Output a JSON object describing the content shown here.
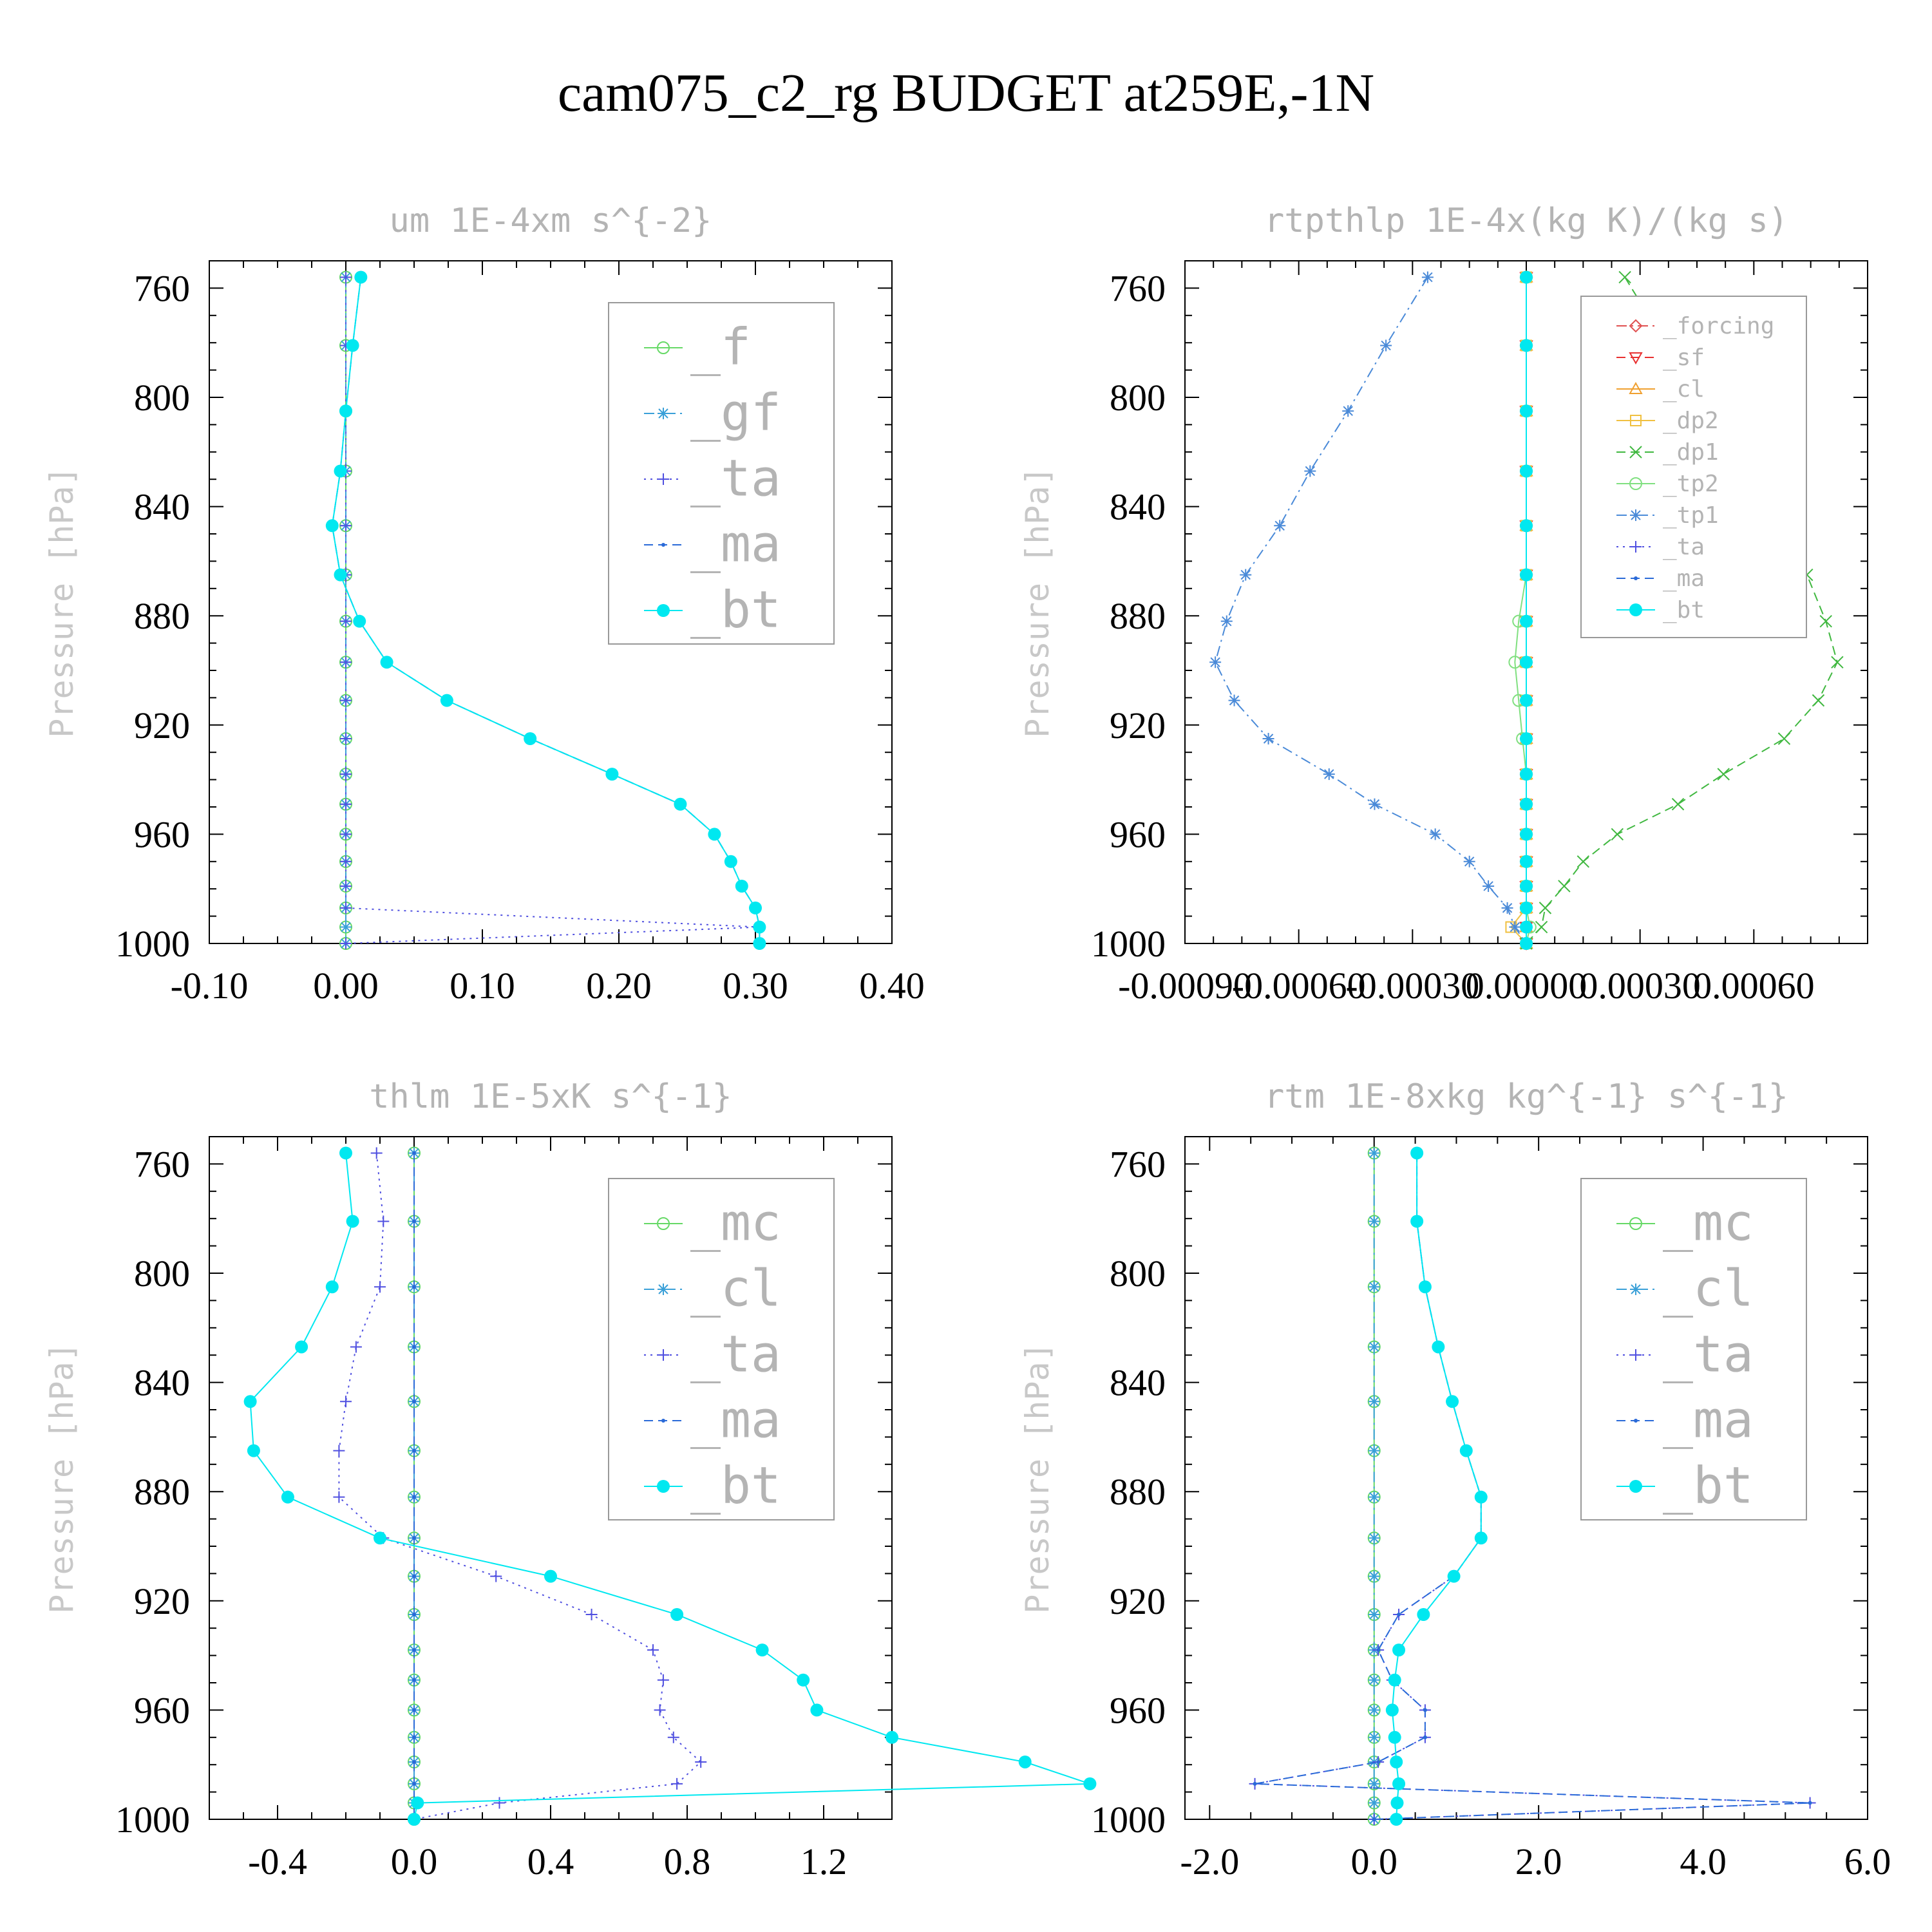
{
  "figure_title": "cam075_c2_rg  BUDGET at259E,-1N",
  "chart_data": [
    {
      "type": "line",
      "title": "um  1E-4xm s^{-2}",
      "ylabel": "Pressure [hPa]",
      "xlim": [
        -0.1,
        0.4
      ],
      "ylim": [
        1000,
        750
      ],
      "xticks": [
        "-0.10",
        "0.00",
        "0.10",
        "0.20",
        "0.30",
        "0.40"
      ],
      "xtick_values": [
        -0.1,
        0.0,
        0.1,
        0.2,
        0.3,
        0.4
      ],
      "yticks": [
        "760",
        "800",
        "840",
        "880",
        "920",
        "960",
        "1000"
      ],
      "legend_position": "top-right",
      "levels": [
        756,
        781,
        805,
        827,
        847,
        865,
        882,
        897,
        911,
        925,
        938,
        949,
        960,
        970,
        979,
        987,
        994,
        1000
      ],
      "series": [
        {
          "name": "_f",
          "color": "#66d966",
          "marker": "circle-open",
          "dash": "none",
          "values": [
            0,
            0,
            0,
            0,
            0,
            0,
            0,
            0,
            0,
            0,
            0,
            0,
            0,
            0,
            0,
            0,
            0,
            0
          ]
        },
        {
          "name": "_gf",
          "color": "#3aa0d8",
          "marker": "asterisk",
          "dash": "dashdot",
          "values": [
            0,
            0,
            0,
            0,
            0,
            0,
            0,
            0,
            0,
            0,
            0,
            0,
            0,
            0,
            0,
            0,
            0,
            0
          ]
        },
        {
          "name": "_ta",
          "color": "#5050e0",
          "marker": "plus",
          "dash": "dot",
          "values": [
            0,
            0,
            0,
            0,
            0,
            0,
            0,
            0,
            0,
            0,
            0,
            0,
            0,
            0,
            0,
            0,
            0.303,
            0.0
          ]
        },
        {
          "name": "_ma",
          "color": "#2a6ad8",
          "marker": "dot",
          "dash": "dash",
          "values": [
            0.011,
            0.005,
            0.0,
            -0.004,
            -0.01,
            -0.004,
            0.01,
            0.03,
            0.074,
            0.135,
            0.195,
            0.245,
            0.27,
            0.282,
            0.29,
            0.3,
            0.303,
            0.303
          ]
        },
        {
          "name": "_bt",
          "color": "#00e8f0",
          "marker": "filled-circle",
          "dash": "solid",
          "values": [
            0.011,
            0.005,
            0.0,
            -0.004,
            -0.01,
            -0.004,
            0.01,
            0.03,
            0.074,
            0.135,
            0.195,
            0.245,
            0.27,
            0.282,
            0.29,
            0.3,
            0.303,
            0.303
          ]
        }
      ]
    },
    {
      "type": "line",
      "title": "rtpthlp  1E-4x(kg K)/(kg s)",
      "ylabel": "Pressure [hPa]",
      "xlim": [
        -0.0009,
        0.0009
      ],
      "ylim": [
        1000,
        750
      ],
      "xticks": [
        "-0.00090",
        "-0.00060",
        "-0.00030",
        "0.00000",
        "0.00030",
        "0.00060"
      ],
      "xtick_values": [
        -0.0009,
        -0.0006,
        -0.0003,
        0.0,
        0.0003,
        0.0006
      ],
      "yticks": [
        "760",
        "800",
        "840",
        "880",
        "920",
        "960",
        "1000"
      ],
      "legend_position": "top-right",
      "levels": [
        756,
        781,
        805,
        827,
        847,
        865,
        882,
        897,
        911,
        925,
        938,
        949,
        960,
        970,
        979,
        987,
        994,
        1000
      ],
      "series": [
        {
          "name": "_forcing",
          "color": "#e05050",
          "marker": "diamond-open",
          "dash": "dashdot",
          "values": [
            0,
            0,
            0,
            0,
            0,
            0,
            0,
            0,
            0,
            0,
            0,
            0,
            0,
            0,
            0,
            0,
            0,
            0
          ]
        },
        {
          "name": "_sf",
          "color": "#e83030",
          "marker": "triangle-down-open",
          "dash": "dash",
          "values": [
            0,
            0,
            0,
            0,
            0,
            0,
            0,
            0,
            0,
            0,
            0,
            0,
            0,
            0,
            0,
            0,
            0,
            0
          ]
        },
        {
          "name": "_cl",
          "color": "#f0a030",
          "marker": "triangle-up-open",
          "dash": "solid",
          "values": [
            0,
            0,
            0,
            0,
            0,
            0,
            0,
            0,
            0,
            0,
            0,
            0,
            0,
            0,
            0,
            0,
            0,
            0
          ]
        },
        {
          "name": "_dp2",
          "color": "#f0c040",
          "marker": "square-open",
          "dash": "solid",
          "values": [
            0,
            0,
            0,
            0,
            0,
            0,
            0,
            0,
            0,
            0,
            0,
            0,
            0,
            0,
            0,
            0,
            -4e-05,
            0
          ]
        },
        {
          "name": "_dp1",
          "color": "#40b840",
          "marker": "x",
          "dash": "dash",
          "values": [
            0.00026,
            0.00037,
            0.00047,
            0.00057,
            0.00065,
            0.00074,
            0.00079,
            0.00082,
            0.00077,
            0.00068,
            0.00052,
            0.0004,
            0.00024,
            0.00015,
            0.0001,
            5e-05,
            4e-05,
            0.0
          ]
        },
        {
          "name": "_tp2",
          "color": "#80e080",
          "marker": "circle-open",
          "dash": "solid",
          "values": [
            0,
            0,
            0,
            0,
            0,
            0,
            -2e-05,
            -3e-05,
            -2e-05,
            -1e-05,
            0,
            0,
            0,
            0,
            0,
            0,
            1e-05,
            0
          ]
        },
        {
          "name": "_tp1",
          "color": "#4a8ad8",
          "marker": "asterisk",
          "dash": "dashdot",
          "values": [
            -0.00026,
            -0.00037,
            -0.00047,
            -0.00057,
            -0.00065,
            -0.00074,
            -0.00079,
            -0.00082,
            -0.00077,
            -0.00068,
            -0.00052,
            -0.0004,
            -0.00024,
            -0.00015,
            -0.0001,
            -5e-05,
            -3e-05,
            0.0
          ]
        },
        {
          "name": "_ta",
          "color": "#5050e0",
          "marker": "plus",
          "dash": "dot",
          "values": [
            0,
            0,
            0,
            0,
            0,
            0,
            0,
            0,
            0,
            0,
            0,
            0,
            0,
            0,
            0,
            0,
            0,
            0
          ]
        },
        {
          "name": "_ma",
          "color": "#2a6ad8",
          "marker": "dot",
          "dash": "dash",
          "values": [
            0,
            0,
            0,
            0,
            0,
            0,
            0,
            0,
            0,
            0,
            0,
            0,
            0,
            0,
            0,
            0,
            0,
            0
          ]
        },
        {
          "name": "_bt",
          "color": "#00e8f0",
          "marker": "filled-circle",
          "dash": "solid",
          "values": [
            0,
            0,
            0,
            0,
            0,
            0,
            0,
            0,
            0,
            0,
            0,
            0,
            0,
            0,
            0,
            0,
            0,
            0
          ]
        }
      ]
    },
    {
      "type": "line",
      "title": "thlm  1E-5xK s^{-1}",
      "ylabel": "Pressure [hPa]",
      "xlim": [
        -0.6,
        1.4
      ],
      "ylim": [
        1000,
        750
      ],
      "xticks": [
        "-0.4",
        "0.0",
        "0.4",
        "0.8",
        "1.2"
      ],
      "xtick_values": [
        -0.4,
        0.0,
        0.4,
        0.8,
        1.2
      ],
      "yticks": [
        "760",
        "800",
        "840",
        "880",
        "920",
        "960",
        "1000"
      ],
      "legend_position": "top-right",
      "levels": [
        756,
        781,
        805,
        827,
        847,
        865,
        882,
        897,
        911,
        925,
        938,
        949,
        960,
        970,
        979,
        987,
        994,
        1000
      ],
      "series": [
        {
          "name": "_mc",
          "color": "#66d966",
          "marker": "circle-open",
          "dash": "none",
          "values": [
            0,
            0,
            0,
            0,
            0,
            0,
            0,
            0,
            0,
            0,
            0,
            0,
            0,
            0,
            0,
            0,
            0,
            0
          ]
        },
        {
          "name": "_cl",
          "color": "#3aa0d8",
          "marker": "asterisk",
          "dash": "dashdot",
          "values": [
            0,
            0,
            0,
            0,
            0,
            0,
            0,
            0,
            0,
            0,
            0,
            0,
            0,
            0,
            0,
            0,
            0,
            0
          ]
        },
        {
          "name": "_ta",
          "color": "#5050e0",
          "marker": "plus",
          "dash": "dot",
          "values": [
            -0.11,
            -0.09,
            -0.1,
            -0.17,
            -0.2,
            -0.22,
            -0.22,
            -0.09,
            0.24,
            0.52,
            0.7,
            0.73,
            0.72,
            0.76,
            0.84,
            0.77,
            0.25,
            0.0
          ]
        },
        {
          "name": "_ma",
          "color": "#2a6ad8",
          "marker": "dot",
          "dash": "dash",
          "values": [
            0,
            0,
            0,
            0,
            0,
            0,
            0,
            0,
            0,
            0,
            0,
            0,
            0,
            0,
            0,
            0,
            0,
            0
          ]
        },
        {
          "name": "_bt",
          "color": "#00e8f0",
          "marker": "filled-circle",
          "dash": "solid",
          "values": [
            -0.2,
            -0.18,
            -0.24,
            -0.33,
            -0.48,
            -0.47,
            -0.37,
            -0.1,
            0.4,
            0.77,
            1.02,
            1.14,
            1.18,
            1.4,
            1.79,
            1.98,
            0.01,
            0.0
          ]
        }
      ]
    },
    {
      "type": "line",
      "title": "rtm  1E-8xkg kg^{-1} s^{-1}",
      "ylabel": "Pressure [hPa]",
      "xlim": [
        -2.3,
        6.0
      ],
      "ylim": [
        1000,
        750
      ],
      "xticks": [
        "-2.0",
        "0.0",
        "2.0",
        "4.0",
        "6.0"
      ],
      "xtick_values": [
        -2.0,
        0.0,
        2.0,
        4.0,
        6.0
      ],
      "yticks": [
        "760",
        "800",
        "840",
        "880",
        "920",
        "960",
        "1000"
      ],
      "legend_position": "top-right",
      "levels": [
        756,
        781,
        805,
        827,
        847,
        865,
        882,
        897,
        911,
        925,
        938,
        949,
        960,
        970,
        979,
        987,
        994,
        1000
      ],
      "series": [
        {
          "name": "_mc",
          "color": "#66d966",
          "marker": "circle-open",
          "dash": "none",
          "values": [
            0,
            0,
            0,
            0,
            0,
            0,
            0,
            0,
            0,
            0,
            0,
            0,
            0,
            0,
            0,
            0,
            0,
            0
          ]
        },
        {
          "name": "_cl",
          "color": "#3aa0d8",
          "marker": "asterisk",
          "dash": "dashdot",
          "values": [
            0,
            0,
            0,
            0,
            0,
            0,
            0,
            0,
            0,
            0,
            0,
            0,
            0,
            0,
            0,
            0,
            0,
            0
          ]
        },
        {
          "name": "_ta",
          "color": "#5050e0",
          "marker": "plus",
          "dash": "dot",
          "values": [
            0.52,
            0.52,
            0.62,
            0.78,
            0.95,
            1.12,
            1.3,
            1.3,
            0.97,
            0.3,
            0.05,
            0.22,
            0.62,
            0.62,
            0.05,
            -1.45,
            5.3,
            0.0
          ]
        },
        {
          "name": "_ma",
          "color": "#2a6ad8",
          "marker": "dot",
          "dash": "dash",
          "values": [
            0.52,
            0.52,
            0.62,
            0.78,
            0.95,
            1.12,
            1.3,
            1.3,
            0.97,
            0.3,
            0.05,
            0.22,
            0.62,
            0.62,
            0.05,
            -1.45,
            5.3,
            0.0
          ]
        },
        {
          "name": "_bt",
          "color": "#00e8f0",
          "marker": "filled-circle",
          "dash": "solid",
          "values": [
            0.52,
            0.52,
            0.62,
            0.78,
            0.95,
            1.12,
            1.3,
            1.3,
            0.97,
            0.6,
            0.3,
            0.25,
            0.22,
            0.25,
            0.27,
            0.3,
            0.28,
            0.27
          ]
        }
      ]
    }
  ]
}
